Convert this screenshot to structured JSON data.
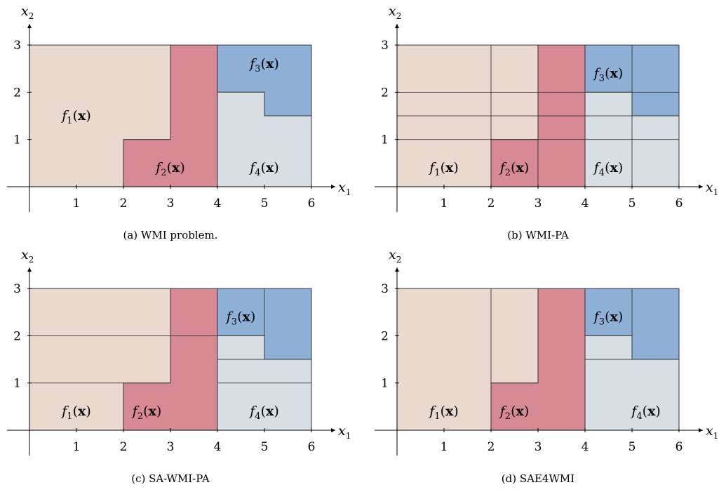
{
  "colors": {
    "f1": "#e9d9cf",
    "f2": "#d78a93",
    "f3": "#8fb0d6",
    "f4": "#d7dfe4",
    "line": "#333333"
  },
  "panels": [
    {
      "caption": "(a) WMI problem.",
      "x_axis": {
        "var": "x",
        "sub": "1"
      },
      "y_axis": {
        "var": "x",
        "sub": "2"
      },
      "x_ticks": [
        "1",
        "2",
        "3",
        "4",
        "5",
        "6"
      ],
      "y_ticks": [
        "1",
        "2",
        "3"
      ],
      "regions": [
        {
          "fn": "f1",
          "pts": [
            [
              0,
              0
            ],
            [
              2,
              0
            ],
            [
              2,
              1
            ],
            [
              3,
              1
            ],
            [
              3,
              3
            ],
            [
              0,
              3
            ]
          ]
        },
        {
          "fn": "f2",
          "pts": [
            [
              2,
              0
            ],
            [
              4,
              0
            ],
            [
              4,
              3
            ],
            [
              3,
              3
            ],
            [
              3,
              1
            ],
            [
              2,
              1
            ]
          ]
        },
        {
          "fn": "f3",
          "pts": [
            [
              4,
              2
            ],
            [
              5,
              2
            ],
            [
              5,
              1.5
            ],
            [
              6,
              1.5
            ],
            [
              6,
              3
            ],
            [
              4,
              3
            ]
          ]
        },
        {
          "fn": "f4",
          "pts": [
            [
              4,
              0
            ],
            [
              6,
              0
            ],
            [
              6,
              1.5
            ],
            [
              5,
              1.5
            ],
            [
              5,
              2
            ],
            [
              4,
              2
            ]
          ]
        }
      ],
      "lines": [],
      "labels": [
        {
          "text": "f",
          "sub": "1",
          "arg": "(x)",
          "at": [
            1,
            1.5
          ]
        },
        {
          "text": "f",
          "sub": "2",
          "arg": "(x)",
          "at": [
            3,
            0.4
          ]
        },
        {
          "text": "f",
          "sub": "3",
          "arg": "(x)",
          "at": [
            5,
            2.6
          ]
        },
        {
          "text": "f",
          "sub": "4",
          "arg": "(x)",
          "at": [
            5,
            0.4
          ]
        }
      ]
    },
    {
      "caption": "(b) WMI-PA",
      "x_axis": {
        "var": "x",
        "sub": "1"
      },
      "y_axis": {
        "var": "x",
        "sub": "2"
      },
      "x_ticks": [
        "1",
        "2",
        "3",
        "4",
        "5",
        "6"
      ],
      "y_ticks": [
        "1",
        "2",
        "3"
      ],
      "regions": [
        {
          "fn": "f1",
          "pts": [
            [
              0,
              0
            ],
            [
              2,
              0
            ],
            [
              2,
              1
            ],
            [
              3,
              1
            ],
            [
              3,
              3
            ],
            [
              0,
              3
            ]
          ]
        },
        {
          "fn": "f2",
          "pts": [
            [
              2,
              0
            ],
            [
              4,
              0
            ],
            [
              4,
              3
            ],
            [
              3,
              3
            ],
            [
              3,
              1
            ],
            [
              2,
              1
            ]
          ]
        },
        {
          "fn": "f3",
          "pts": [
            [
              4,
              2
            ],
            [
              5,
              2
            ],
            [
              5,
              1.5
            ],
            [
              6,
              1.5
            ],
            [
              6,
              3
            ],
            [
              4,
              3
            ]
          ]
        },
        {
          "fn": "f4",
          "pts": [
            [
              4,
              0
            ],
            [
              6,
              0
            ],
            [
              6,
              1.5
            ],
            [
              5,
              1.5
            ],
            [
              5,
              2
            ],
            [
              4,
              2
            ]
          ]
        }
      ],
      "lines": [
        [
          [
            0,
            1
          ],
          [
            6,
            1
          ]
        ],
        [
          [
            0,
            1.5
          ],
          [
            6,
            1.5
          ]
        ],
        [
          [
            0,
            2
          ],
          [
            6,
            2
          ]
        ],
        [
          [
            2,
            0
          ],
          [
            2,
            3
          ]
        ],
        [
          [
            3,
            0
          ],
          [
            3,
            3
          ]
        ],
        [
          [
            5,
            0
          ],
          [
            5,
            3
          ]
        ]
      ],
      "labels": [
        {
          "text": "f",
          "sub": "1",
          "arg": "(x)",
          "at": [
            1,
            0.4
          ]
        },
        {
          "text": "f",
          "sub": "2",
          "arg": "(x)",
          "at": [
            2.5,
            0.4
          ]
        },
        {
          "text": "f",
          "sub": "3",
          "arg": "(x)",
          "at": [
            4.5,
            2.4
          ]
        },
        {
          "text": "f",
          "sub": "4",
          "arg": "(x)",
          "at": [
            4.5,
            0.4
          ]
        }
      ]
    },
    {
      "caption": "(c) SA-WMI-PA",
      "x_axis": {
        "var": "x",
        "sub": "1"
      },
      "y_axis": {
        "var": "x",
        "sub": "2"
      },
      "x_ticks": [
        "1",
        "2",
        "3",
        "4",
        "5",
        "6"
      ],
      "y_ticks": [
        "1",
        "2",
        "3"
      ],
      "regions": [
        {
          "fn": "f1",
          "pts": [
            [
              0,
              0
            ],
            [
              2,
              0
            ],
            [
              2,
              1
            ],
            [
              3,
              1
            ],
            [
              3,
              3
            ],
            [
              0,
              3
            ]
          ]
        },
        {
          "fn": "f2",
          "pts": [
            [
              2,
              0
            ],
            [
              4,
              0
            ],
            [
              4,
              3
            ],
            [
              3,
              3
            ],
            [
              3,
              1
            ],
            [
              2,
              1
            ]
          ]
        },
        {
          "fn": "f3",
          "pts": [
            [
              4,
              2
            ],
            [
              5,
              2
            ],
            [
              5,
              1.5
            ],
            [
              6,
              1.5
            ],
            [
              6,
              3
            ],
            [
              4,
              3
            ]
          ]
        },
        {
          "fn": "f4",
          "pts": [
            [
              4,
              0
            ],
            [
              6,
              0
            ],
            [
              6,
              1.5
            ],
            [
              5,
              1.5
            ],
            [
              5,
              2
            ],
            [
              4,
              2
            ]
          ]
        }
      ],
      "lines": [
        [
          [
            0,
            1
          ],
          [
            2,
            1
          ]
        ],
        [
          [
            0,
            2
          ],
          [
            4,
            2
          ]
        ],
        [
          [
            4,
            1
          ],
          [
            6,
            1
          ]
        ],
        [
          [
            4,
            1.5
          ],
          [
            5,
            1.5
          ]
        ],
        [
          [
            5,
            2
          ],
          [
            5,
            3
          ]
        ]
      ],
      "labels": [
        {
          "text": "f",
          "sub": "1",
          "arg": "(x)",
          "at": [
            1,
            0.4
          ]
        },
        {
          "text": "f",
          "sub": "2",
          "arg": "(x)",
          "at": [
            2.5,
            0.4
          ]
        },
        {
          "text": "f",
          "sub": "3",
          "arg": "(x)",
          "at": [
            4.5,
            2.4
          ]
        },
        {
          "text": "f",
          "sub": "4",
          "arg": "(x)",
          "at": [
            5,
            0.4
          ]
        }
      ]
    },
    {
      "caption": "(d) SAE4WMI",
      "x_axis": {
        "var": "x",
        "sub": "1"
      },
      "y_axis": {
        "var": "x",
        "sub": "2"
      },
      "x_ticks": [
        "1",
        "2",
        "3",
        "4",
        "5",
        "6"
      ],
      "y_ticks": [
        "1",
        "2",
        "3"
      ],
      "regions": [
        {
          "fn": "f1",
          "pts": [
            [
              0,
              0
            ],
            [
              2,
              0
            ],
            [
              2,
              1
            ],
            [
              3,
              1
            ],
            [
              3,
              3
            ],
            [
              0,
              3
            ]
          ]
        },
        {
          "fn": "f2",
          "pts": [
            [
              2,
              0
            ],
            [
              4,
              0
            ],
            [
              4,
              3
            ],
            [
              3,
              3
            ],
            [
              3,
              1
            ],
            [
              2,
              1
            ]
          ]
        },
        {
          "fn": "f3",
          "pts": [
            [
              4,
              2
            ],
            [
              5,
              2
            ],
            [
              5,
              1.5
            ],
            [
              6,
              1.5
            ],
            [
              6,
              3
            ],
            [
              4,
              3
            ]
          ]
        },
        {
          "fn": "f4",
          "pts": [
            [
              4,
              0
            ],
            [
              6,
              0
            ],
            [
              6,
              1.5
            ],
            [
              5,
              1.5
            ],
            [
              5,
              2
            ],
            [
              4,
              2
            ]
          ]
        }
      ],
      "lines": [
        [
          [
            2,
            1
          ],
          [
            2,
            3
          ]
        ],
        [
          [
            4,
            1.5
          ],
          [
            5,
            1.5
          ]
        ],
        [
          [
            5,
            2
          ],
          [
            5,
            3
          ]
        ]
      ],
      "labels": [
        {
          "text": "f",
          "sub": "1",
          "arg": "(x)",
          "at": [
            1,
            0.4
          ]
        },
        {
          "text": "f",
          "sub": "2",
          "arg": "(x)",
          "at": [
            2.5,
            0.4
          ]
        },
        {
          "text": "f",
          "sub": "3",
          "arg": "(x)",
          "at": [
            4.5,
            2.4
          ]
        },
        {
          "text": "f",
          "sub": "4",
          "arg": "(x)",
          "at": [
            5.3,
            0.4
          ]
        }
      ]
    }
  ]
}
